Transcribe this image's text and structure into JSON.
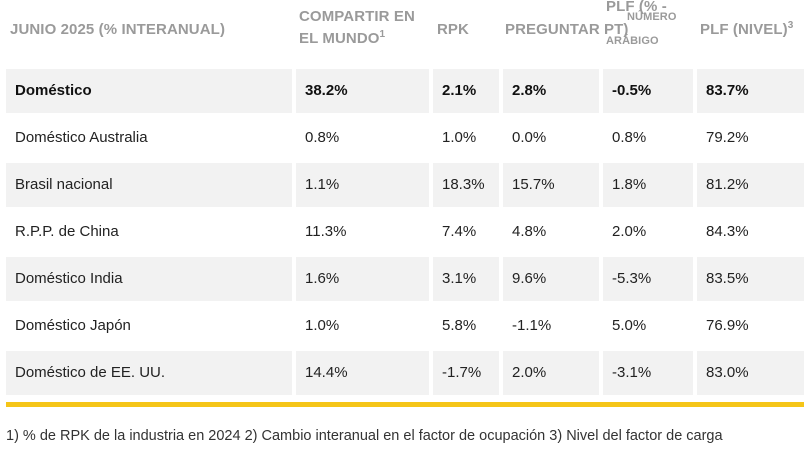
{
  "header": {
    "col0": "JUNIO 2025 (% INTERANUAL)",
    "col1_line1": "COMPARTIR EN",
    "col1_line2": "EL MUNDO",
    "col1_sup": "1",
    "col2": "RPK",
    "col3": "PREGUNTAR PT)",
    "col4_prefix": "PLF (% -",
    "col4_sup": "NÚMERO",
    "col4_sub": "ARÁBIGO",
    "col5": "PLF (NIVEL)",
    "col5_sup": "3"
  },
  "rows": [
    {
      "market": "Doméstico",
      "share": "38.2%",
      "rpk": "2.1%",
      "ask": "2.8%",
      "plf_pt": "-0.5%",
      "plf_level": "83.7%"
    },
    {
      "market": "Doméstico Australia",
      "share": "0.8%",
      "rpk": "1.0%",
      "ask": "0.0%",
      "plf_pt": "0.8%",
      "plf_level": "79.2%"
    },
    {
      "market": "Brasil nacional",
      "share": "1.1%",
      "rpk": "18.3%",
      "ask": "15.7%",
      "plf_pt": "1.8%",
      "plf_level": "81.2%"
    },
    {
      "market": "R.P.P. de China",
      "share": "11.3%",
      "rpk": "7.4%",
      "ask": "4.8%",
      "plf_pt": "2.0%",
      "plf_level": "84.3%"
    },
    {
      "market": "Doméstico India",
      "share": "1.6%",
      "rpk": "3.1%",
      "ask": "9.6%",
      "plf_pt": "-5.3%",
      "plf_level": "83.5%"
    },
    {
      "market": "Doméstico Japón",
      "share": "1.0%",
      "rpk": "5.8%",
      "ask": "-1.1%",
      "plf_pt": "5.0%",
      "plf_level": "76.9%"
    },
    {
      "market": "Doméstico de EE. UU.",
      "share": "14.4%",
      "rpk": "-1.7%",
      "ask": "2.0%",
      "plf_pt": "-3.1%",
      "plf_level": "83.0%"
    }
  ],
  "footnote": "1) % de RPK de la industria en 2024 2) Cambio interanual en el factor de ocupación 3) Nivel del factor de carga",
  "colors": {
    "accent_bar": "#f5c518",
    "shade": "#f2f2f2",
    "header_text": "#9a9a9a"
  }
}
